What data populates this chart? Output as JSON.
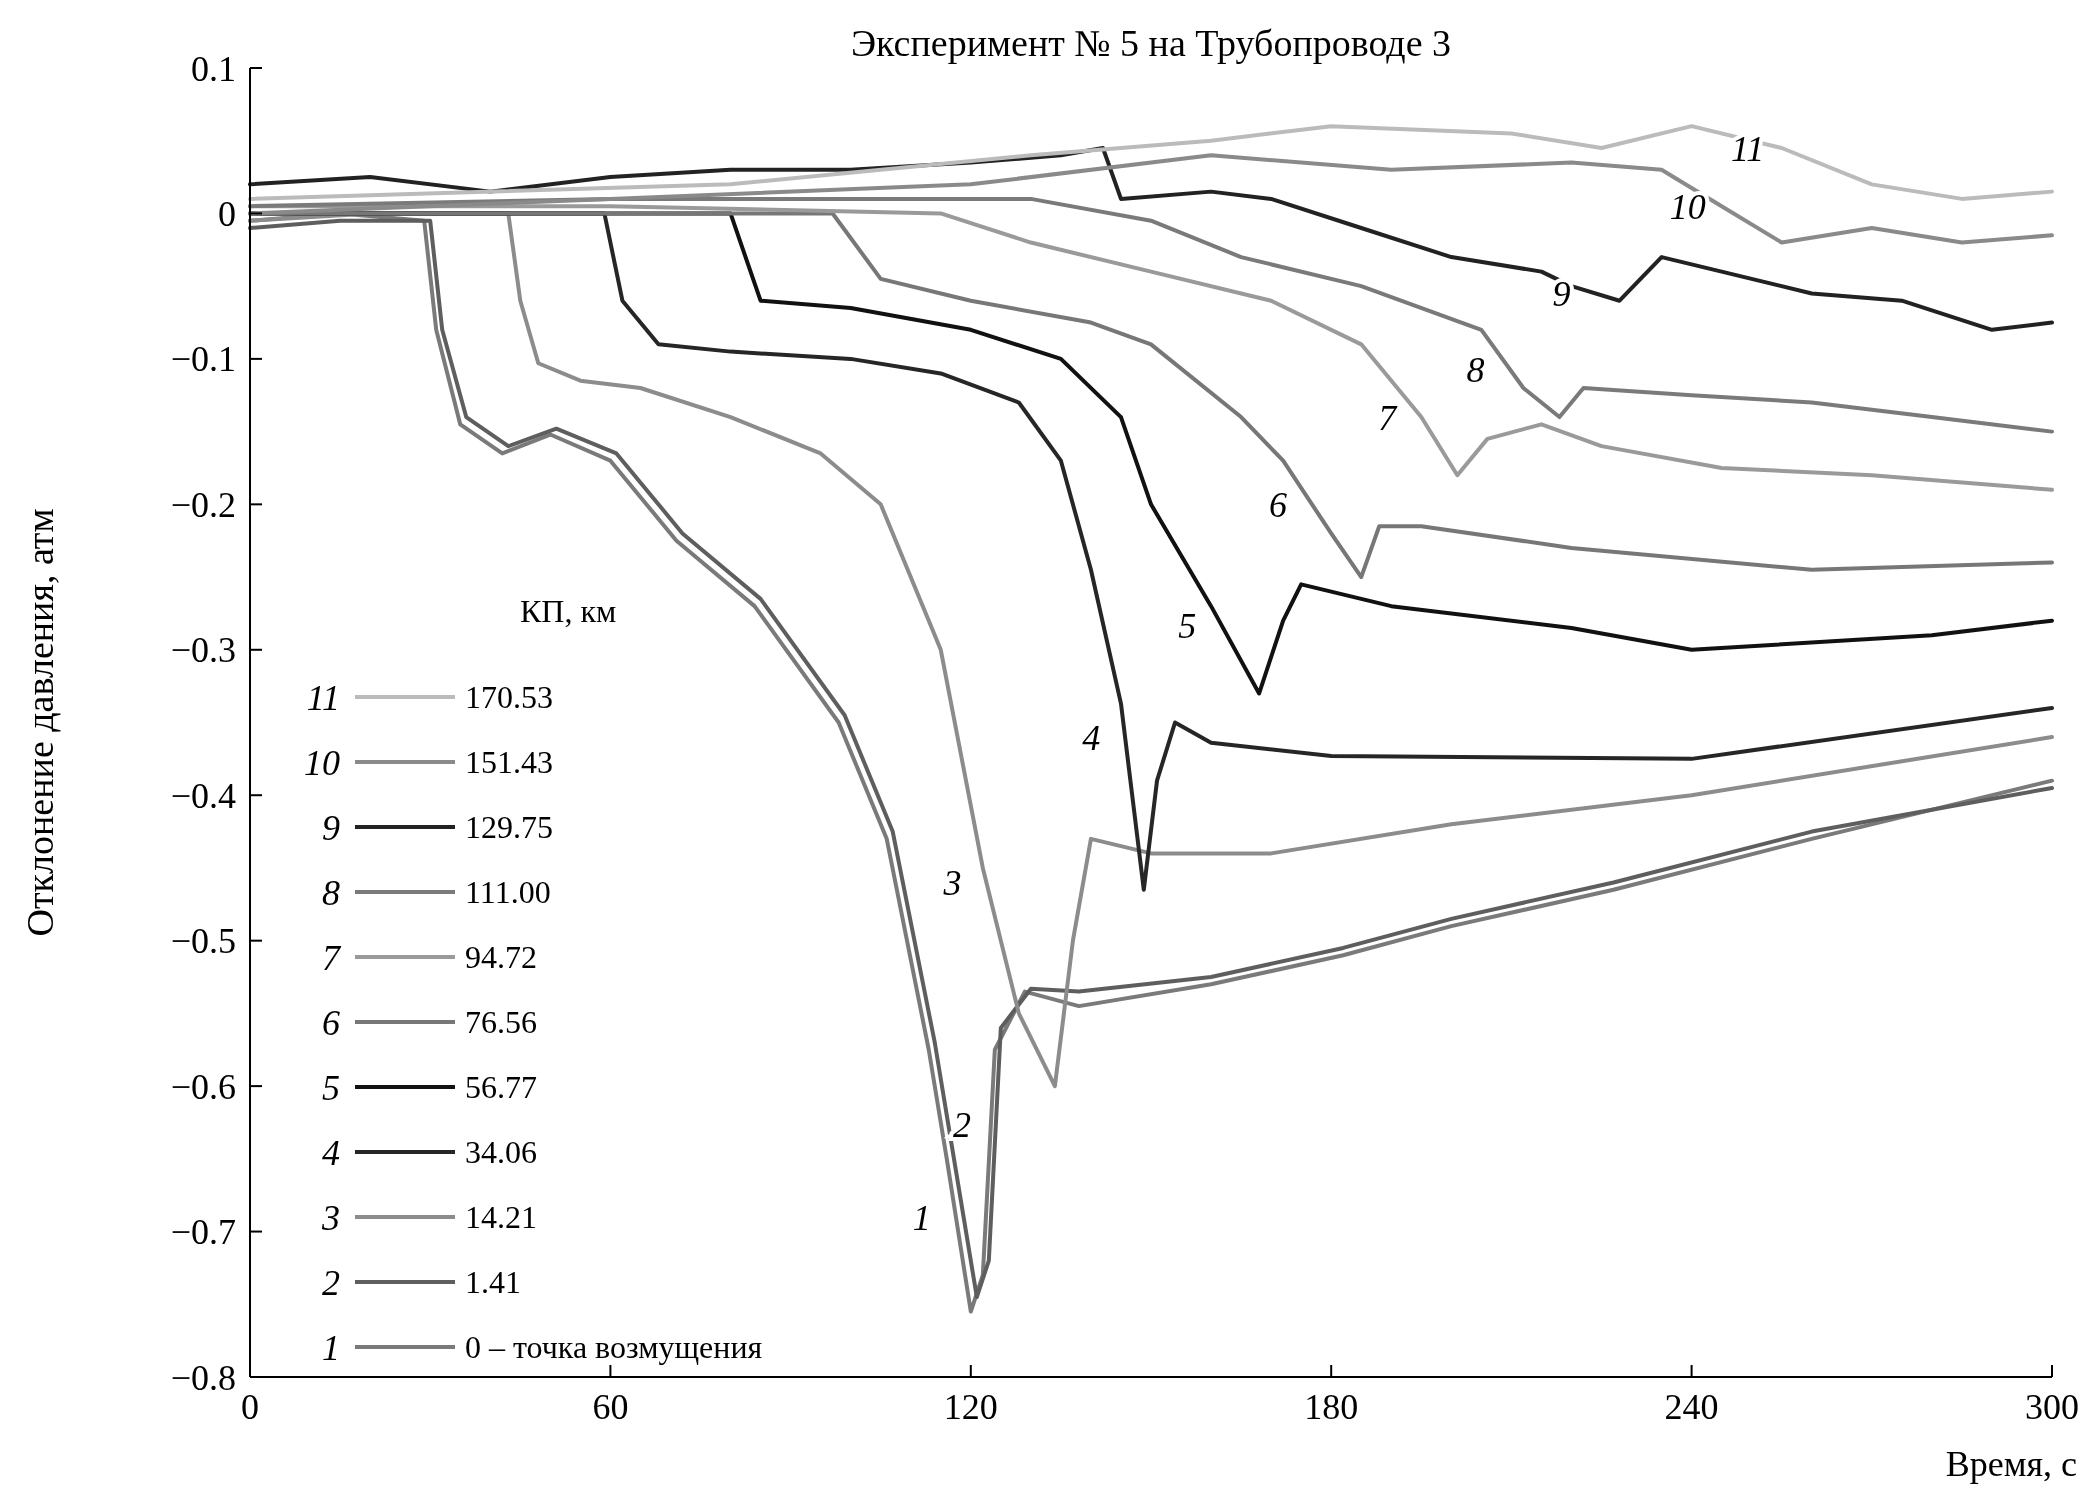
{
  "chart_data": {
    "type": "line",
    "title": "Эксперимент № 5 на Трубопроводе 3",
    "xlabel": "Время, с",
    "ylabel": "Отклонение давления, атм",
    "legend_title": "КП, км",
    "legend": "bottom left",
    "grid": false,
    "marker": "none",
    "line_style": "solid",
    "xlim": [
      0,
      300
    ],
    "xticks": [
      0,
      60,
      120,
      180,
      240,
      300
    ],
    "ylim": [
      -0.8,
      0.1
    ],
    "yticks": [
      {
        "value": 0.1,
        "label": "0.1"
      },
      {
        "value": 0,
        "label": "0"
      },
      {
        "value": -0.1,
        "label": "−0.1"
      },
      {
        "value": -0.2,
        "label": "−0.2"
      },
      {
        "value": -0.3,
        "label": "−0.3"
      },
      {
        "value": -0.4,
        "label": "−0.4"
      },
      {
        "value": -0.5,
        "label": "−0.5"
      },
      {
        "value": -0.6,
        "label": "−0.6"
      },
      {
        "value": -0.7,
        "label": "−0.7"
      },
      {
        "value": -0.8,
        "label": "−0.8"
      }
    ],
    "series": [
      {
        "name": "0 – точка возмущения",
        "color": "#7a7a7a",
        "x": [
          0,
          15,
          29,
          31,
          35,
          42,
          50,
          60,
          71,
          84,
          98,
          106,
          113,
          116,
          120,
          122,
          124,
          129,
          138,
          160,
          182,
          200,
          227,
          260,
          300
        ],
        "values": [
          -0.005,
          0,
          -0.005,
          -0.08,
          -0.145,
          -0.165,
          -0.152,
          -0.17,
          -0.225,
          -0.27,
          -0.35,
          -0.43,
          -0.575,
          -0.65,
          -0.755,
          -0.73,
          -0.575,
          -0.535,
          -0.545,
          -0.53,
          -0.51,
          -0.49,
          -0.465,
          -0.43,
          -0.39
        ]
      },
      {
        "name": "1.41",
        "color": "#5e5e5e",
        "x": [
          0,
          15,
          30,
          32,
          36,
          43,
          51,
          61,
          72,
          85,
          99,
          107,
          114,
          117,
          121,
          123,
          125,
          130,
          138,
          160,
          182,
          200,
          227,
          260,
          300
        ],
        "values": [
          -0.01,
          -0.005,
          -0.005,
          -0.08,
          -0.14,
          -0.16,
          -0.148,
          -0.165,
          -0.22,
          -0.265,
          -0.345,
          -0.425,
          -0.57,
          -0.645,
          -0.745,
          -0.72,
          -0.56,
          -0.533,
          -0.535,
          -0.525,
          -0.505,
          -0.485,
          -0.46,
          -0.425,
          -0.395
        ]
      },
      {
        "name": "14.21",
        "color": "#8c8c8c",
        "x": [
          0,
          20,
          43,
          45,
          48,
          55,
          65,
          80,
          95,
          105,
          115,
          122,
          128,
          134,
          137,
          140,
          150,
          170,
          200,
          240,
          300
        ],
        "values": [
          -0.005,
          0,
          0,
          -0.06,
          -0.103,
          -0.115,
          -0.12,
          -0.14,
          -0.165,
          -0.2,
          -0.3,
          -0.45,
          -0.55,
          -0.6,
          -0.5,
          -0.43,
          -0.44,
          -0.44,
          -0.42,
          -0.4,
          -0.36
        ]
      },
      {
        "name": "34.06",
        "color": "#262626",
        "x": [
          0,
          30,
          59,
          62,
          68,
          80,
          100,
          115,
          128,
          135,
          140,
          145,
          148.8,
          151,
          154,
          160,
          180,
          240,
          300
        ],
        "values": [
          0,
          0,
          0,
          -0.06,
          -0.09,
          -0.095,
          -0.1,
          -0.11,
          -0.13,
          -0.17,
          -0.245,
          -0.337,
          -0.465,
          -0.39,
          -0.35,
          -0.364,
          -0.373,
          -0.375,
          -0.34
        ]
      },
      {
        "name": "56.77",
        "color": "#111111",
        "x": [
          0,
          40,
          80,
          85,
          100,
          120,
          135,
          145,
          150,
          160,
          168,
          172,
          175,
          190,
          220,
          240,
          280,
          300
        ],
        "values": [
          0,
          0,
          0,
          -0.06,
          -0.065,
          -0.08,
          -0.1,
          -0.14,
          -0.2,
          -0.27,
          -0.33,
          -0.28,
          -0.255,
          -0.27,
          -0.285,
          -0.3,
          -0.29,
          -0.28
        ]
      },
      {
        "name": "76.56",
        "color": "#777777",
        "x": [
          0,
          50,
          97,
          105,
          120,
          140,
          150,
          165,
          172,
          180,
          185,
          188,
          195,
          220,
          260,
          300
        ],
        "values": [
          0,
          0,
          0,
          -0.045,
          -0.06,
          -0.075,
          -0.09,
          -0.14,
          -0.17,
          -0.22,
          -0.25,
          -0.215,
          -0.215,
          -0.23,
          -0.245,
          -0.24
        ]
      },
      {
        "name": "94.72",
        "color": "#9a9a9a",
        "x": [
          0,
          60,
          115,
          130,
          150,
          170,
          185,
          195,
          201,
          206,
          215,
          225,
          245,
          270,
          300
        ],
        "values": [
          0.005,
          0.005,
          0,
          -0.02,
          -0.04,
          -0.06,
          -0.09,
          -0.14,
          -0.18,
          -0.155,
          -0.145,
          -0.16,
          -0.175,
          -0.18,
          -0.19
        ]
      },
      {
        "name": "111.00",
        "color": "#7a7a7a",
        "x": [
          0,
          60,
          130,
          150,
          165,
          185,
          205,
          212,
          218,
          222,
          240,
          260,
          280,
          300
        ],
        "values": [
          0.005,
          0.01,
          0.01,
          -0.005,
          -0.03,
          -0.05,
          -0.08,
          -0.12,
          -0.14,
          -0.12,
          -0.125,
          -0.13,
          -0.14,
          -0.15
        ]
      },
      {
        "name": "129.75",
        "color": "#222222",
        "x": [
          0,
          20,
          40,
          60,
          80,
          100,
          120,
          135,
          142,
          145,
          160,
          170,
          185,
          200,
          215,
          220,
          228,
          235,
          245,
          260,
          275,
          290,
          300
        ],
        "values": [
          0.02,
          0.025,
          0.015,
          0.025,
          0.03,
          0.03,
          0.035,
          0.04,
          0.045,
          0.01,
          0.015,
          0.01,
          -0.01,
          -0.03,
          -0.04,
          -0.05,
          -0.06,
          -0.03,
          -0.04,
          -0.055,
          -0.06,
          -0.08,
          -0.075
        ]
      },
      {
        "name": "151.43",
        "color": "#8a8a8a",
        "x": [
          0,
          60,
          120,
          160,
          190,
          220,
          235,
          245,
          255,
          270,
          285,
          300
        ],
        "values": [
          0,
          0.01,
          0.02,
          0.04,
          0.03,
          0.035,
          0.03,
          0.005,
          -0.02,
          -0.01,
          -0.02,
          -0.015
        ]
      },
      {
        "name": "170.53",
        "color": "#bbbbbb",
        "x": [
          0,
          80,
          130,
          160,
          180,
          210,
          225,
          240,
          255,
          270,
          285,
          300
        ],
        "values": [
          0.01,
          0.02,
          0.04,
          0.05,
          0.06,
          0.055,
          0.045,
          0.06,
          0.045,
          0.02,
          0.01,
          0.015
        ]
      }
    ],
    "annotations": [
      {
        "text": "1",
        "x": 117.5,
        "y": -0.69
      },
      {
        "text": "2",
        "x": 124.2,
        "y": -0.626
      },
      {
        "text": "3",
        "x": 122.6,
        "y": -0.46
      },
      {
        "text": "4",
        "x": 145.7,
        "y": -0.36
      },
      {
        "text": "5",
        "x": 161.7,
        "y": -0.283
      },
      {
        "text": "6",
        "x": 176.8,
        "y": -0.2
      },
      {
        "text": "7",
        "x": 195,
        "y": -0.14
      },
      {
        "text": "8",
        "x": 209.7,
        "y": -0.107
      },
      {
        "text": "9",
        "x": 224,
        "y": -0.055
      },
      {
        "text": "10",
        "x": 245,
        "y": 0.005
      },
      {
        "text": "11",
        "x": 255,
        "y": 0.045
      }
    ]
  }
}
